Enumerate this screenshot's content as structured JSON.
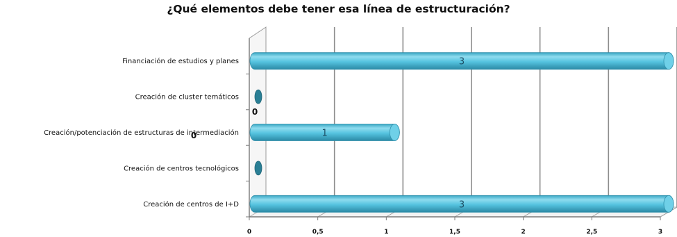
{
  "chart_data": {
    "type": "bar",
    "orientation": "horizontal",
    "title": "¿Qué elementos debe tener esa línea de estructuración?",
    "categories": [
      "Financiación de estudios y planes",
      "Creación de cluster temáticos",
      "Creación/potenciación de estructuras de intermediación",
      "Creación de centros tecnológicos",
      "Creación de centros de I+D"
    ],
    "values": [
      3,
      0,
      1,
      0,
      3
    ],
    "data_labels": [
      "3",
      "0",
      "1",
      "0",
      "3"
    ],
    "xlim": [
      0,
      3
    ],
    "x_ticks": [
      "0",
      "0,5",
      "1",
      "1,5",
      "2",
      "2,5",
      "3"
    ],
    "grid": true,
    "style": "3d-cylinder",
    "bar_color": "#4fc3e0"
  }
}
